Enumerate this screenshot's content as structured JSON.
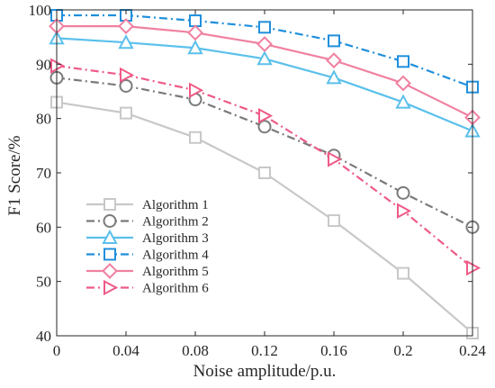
{
  "chart_data": {
    "type": "line",
    "xlabel": "Noise amplitude/p.u.",
    "ylabel": "F1 Score/%",
    "x": [
      0,
      0.04,
      0.08,
      0.12,
      0.16,
      0.2,
      0.24
    ],
    "x_tick_labels": [
      "0",
      "0.04",
      "0.08",
      "0.12",
      "0.16",
      "0.2",
      "0.24"
    ],
    "xlim": [
      0,
      0.24
    ],
    "ylim": [
      40,
      100
    ],
    "y_ticks": [
      40,
      50,
      60,
      70,
      80,
      90,
      100
    ],
    "y_tick_labels": [
      "40",
      "50",
      "60",
      "70",
      "80",
      "90",
      "100"
    ],
    "grid": false,
    "legend_position": "lower-left",
    "series": [
      {
        "name": "Algorithm 1",
        "values": [
          83,
          81,
          76.5,
          70,
          61.2,
          51.5,
          40.5
        ],
        "color": "#c8c8c8",
        "marker": "square",
        "dash": "solid"
      },
      {
        "name": "Algorithm 2",
        "values": [
          87.5,
          86,
          83.5,
          78.5,
          73.2,
          66.3,
          60
        ],
        "color": "#7a7a7a",
        "marker": "circle",
        "dash": "dashdot"
      },
      {
        "name": "Algorithm 3",
        "values": [
          94.8,
          94,
          93,
          91,
          87.5,
          83,
          77.7
        ],
        "color": "#5bc0eb",
        "marker": "triangle-up",
        "dash": "solid"
      },
      {
        "name": "Algorithm 4",
        "values": [
          99,
          99,
          98,
          96.8,
          94.3,
          90.5,
          85.8
        ],
        "color": "#1f8fdc",
        "marker": "square",
        "dash": "dashdot"
      },
      {
        "name": "Algorithm 5",
        "values": [
          97,
          97,
          95.8,
          93.7,
          90.7,
          86.5,
          80.2
        ],
        "color": "#f080a0",
        "marker": "diamond",
        "dash": "solid"
      },
      {
        "name": "Algorithm 6",
        "values": [
          89.7,
          88,
          85.2,
          80.5,
          72.5,
          63,
          52.5
        ],
        "color": "#ee5a86",
        "marker": "triangle-right",
        "dash": "dashdot"
      }
    ]
  }
}
